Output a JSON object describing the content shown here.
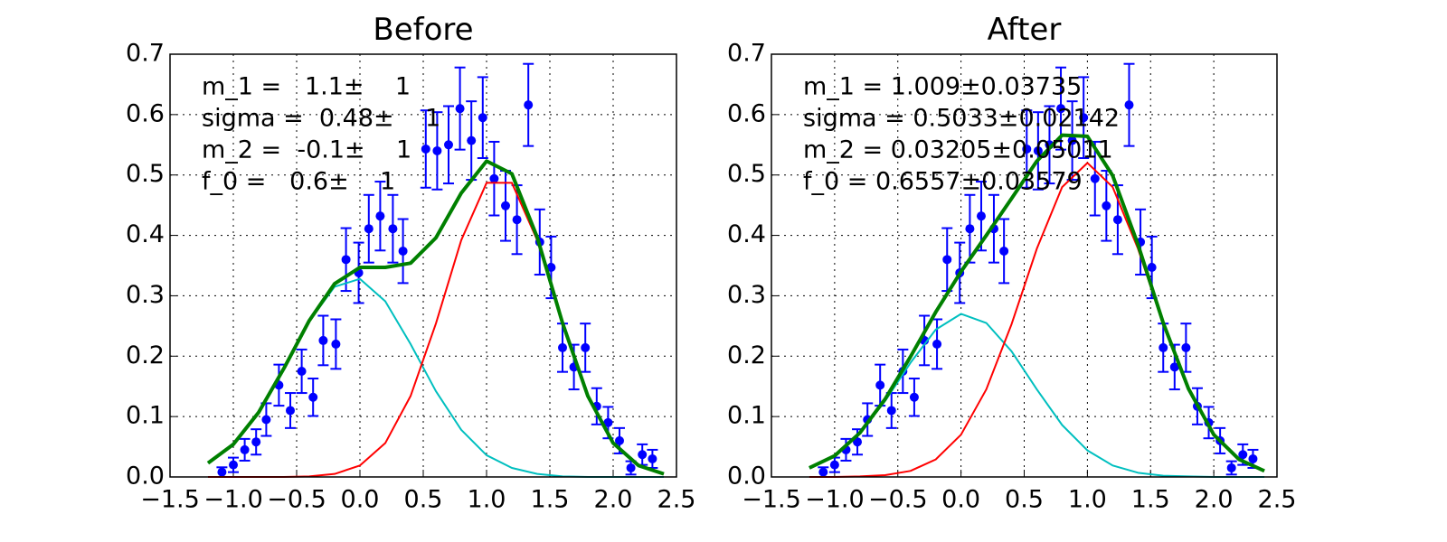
{
  "chart_data": [
    {
      "type": "line",
      "title": "Before",
      "annotations": [
        "m_1 =   1.1±    1",
        "sigma =  0.48±    1",
        "m_2 =  -0.1±    1",
        "f_0 =   0.6±    1"
      ],
      "xlim": [
        -1.5,
        2.5
      ],
      "ylim": [
        0,
        0.7
      ],
      "xticks": [
        {
          "value": -1.5,
          "label": "−1.5"
        },
        {
          "value": -1,
          "label": "−1.0"
        },
        {
          "value": -0.5,
          "label": "−0.5"
        },
        {
          "value": 0,
          "label": "0.0"
        },
        0.5,
        {
          "value": 1,
          "label": "1.0"
        },
        1.5,
        {
          "value": 2,
          "label": "2.0"
        },
        2.5
      ],
      "yticks": [
        {
          "value": 0,
          "label": "0.0"
        },
        0.1,
        0.2,
        0.3,
        0.4,
        0.5,
        0.6,
        0.7
      ],
      "grid": true,
      "points": {
        "color": "#0000ff",
        "x": [
          -1.09,
          -1.0,
          -0.91,
          -0.82,
          -0.74,
          -0.64,
          -0.55,
          -0.46,
          -0.37,
          -0.29,
          -0.19,
          -0.11,
          -0.01,
          0.07,
          0.16,
          0.26,
          0.34,
          0.52,
          0.61,
          0.7,
          0.79,
          0.88,
          0.97,
          1.06,
          1.15,
          1.24,
          1.33,
          1.42,
          1.51,
          1.6,
          1.69,
          1.78,
          1.87,
          1.96,
          2.05,
          2.14,
          2.23,
          2.31
        ],
        "values": [
          0.008,
          0.02,
          0.045,
          0.058,
          0.095,
          0.152,
          0.11,
          0.175,
          0.132,
          0.226,
          0.22,
          0.36,
          0.338,
          0.411,
          0.432,
          0.411,
          0.374,
          0.543,
          0.54,
          0.55,
          0.61,
          0.557,
          0.595,
          0.494,
          0.449,
          0.426,
          0.616,
          0.389,
          0.347,
          0.214,
          0.182,
          0.214,
          0.117,
          0.09,
          0.06,
          0.015,
          0.037,
          0.03
        ],
        "errors": [
          0.008,
          0.012,
          0.018,
          0.021,
          0.027,
          0.034,
          0.029,
          0.036,
          0.031,
          0.041,
          0.041,
          0.052,
          0.05,
          0.056,
          0.057,
          0.056,
          0.053,
          0.064,
          0.064,
          0.064,
          0.068,
          0.065,
          0.067,
          0.061,
          0.058,
          0.057,
          0.068,
          0.054,
          0.051,
          0.04,
          0.037,
          0.04,
          0.03,
          0.026,
          0.021,
          0.011,
          0.017,
          0.015
        ]
      },
      "x": [
        -1.2,
        -1.0,
        -0.8,
        -0.6,
        -0.4,
        -0.2,
        0.0,
        0.2,
        0.4,
        0.6,
        0.8,
        1.0,
        1.2,
        1.4,
        1.6,
        1.8,
        2.0,
        2.2,
        2.4
      ],
      "series": [
        {
          "color": "#00bfbf",
          "width": 2,
          "values": [
            0.023,
            0.054,
            0.107,
            0.18,
            0.258,
            0.315,
            0.328,
            0.291,
            0.22,
            0.142,
            0.078,
            0.036,
            0.015,
            0.005,
            0.001,
            0,
            0,
            0,
            0
          ]
        },
        {
          "color": "#ff0000",
          "width": 2,
          "values": [
            0,
            0,
            0,
            0,
            0.001,
            0.005,
            0.019,
            0.056,
            0.134,
            0.254,
            0.392,
            0.487,
            0.487,
            0.392,
            0.254,
            0.134,
            0.056,
            0.019,
            0.005
          ]
        },
        {
          "color": "#008000",
          "width": 4,
          "values": [
            0.023,
            0.054,
            0.107,
            0.18,
            0.259,
            0.32,
            0.347,
            0.347,
            0.354,
            0.396,
            0.47,
            0.523,
            0.502,
            0.397,
            0.255,
            0.134,
            0.056,
            0.019,
            0.005
          ]
        }
      ]
    },
    {
      "type": "line",
      "title": "After",
      "annotations": [
        "m_1 = 1.009±0.03735",
        "sigma = 0.5033±0.02142",
        "m_2 = 0.03205±0.05011",
        "f_0 = 0.6557±0.03579"
      ],
      "xlim": [
        -1.5,
        2.5
      ],
      "ylim": [
        0,
        0.7
      ],
      "xticks": [
        {
          "value": -1.5,
          "label": "−1.5"
        },
        {
          "value": -1,
          "label": "−1.0"
        },
        {
          "value": -0.5,
          "label": "−0.5"
        },
        {
          "value": 0,
          "label": "0.0"
        },
        0.5,
        {
          "value": 1,
          "label": "1.0"
        },
        1.5,
        {
          "value": 2,
          "label": "2.0"
        },
        2.5
      ],
      "yticks": [
        {
          "value": 0,
          "label": "0.0"
        },
        0.1,
        0.2,
        0.3,
        0.4,
        0.5,
        0.6,
        0.7
      ],
      "grid": true,
      "points": {
        "color": "#0000ff",
        "x": [
          -1.09,
          -1.0,
          -0.91,
          -0.82,
          -0.74,
          -0.64,
          -0.55,
          -0.46,
          -0.37,
          -0.29,
          -0.19,
          -0.11,
          -0.01,
          0.07,
          0.16,
          0.26,
          0.34,
          0.52,
          0.61,
          0.7,
          0.79,
          0.88,
          0.97,
          1.06,
          1.15,
          1.24,
          1.33,
          1.42,
          1.51,
          1.6,
          1.69,
          1.78,
          1.87,
          1.96,
          2.05,
          2.14,
          2.23,
          2.31
        ],
        "values": [
          0.008,
          0.02,
          0.045,
          0.058,
          0.095,
          0.152,
          0.11,
          0.175,
          0.132,
          0.226,
          0.22,
          0.36,
          0.338,
          0.411,
          0.432,
          0.411,
          0.374,
          0.543,
          0.54,
          0.55,
          0.61,
          0.557,
          0.595,
          0.494,
          0.449,
          0.426,
          0.616,
          0.389,
          0.347,
          0.214,
          0.182,
          0.214,
          0.117,
          0.09,
          0.06,
          0.015,
          0.037,
          0.03
        ],
        "errors": [
          0.008,
          0.012,
          0.018,
          0.021,
          0.027,
          0.034,
          0.029,
          0.036,
          0.031,
          0.041,
          0.041,
          0.052,
          0.05,
          0.056,
          0.057,
          0.056,
          0.053,
          0.064,
          0.064,
          0.064,
          0.068,
          0.065,
          0.067,
          0.061,
          0.058,
          0.057,
          0.068,
          0.054,
          0.051,
          0.04,
          0.037,
          0.04,
          0.03,
          0.026,
          0.021,
          0.011,
          0.017,
          0.015
        ]
      },
      "x": [
        -1.2,
        -1.0,
        -0.8,
        -0.6,
        -0.4,
        -0.2,
        0.0,
        0.2,
        0.4,
        0.6,
        0.8,
        1.0,
        1.2,
        1.4,
        1.6,
        1.8,
        2.0,
        2.2,
        2.4
      ],
      "series": [
        {
          "color": "#00bfbf",
          "width": 2,
          "values": [
            0.015,
            0.035,
            0.072,
            0.126,
            0.189,
            0.244,
            0.27,
            0.255,
            0.208,
            0.145,
            0.086,
            0.044,
            0.019,
            0.007,
            0.002,
            0.001,
            0,
            0,
            0
          ]
        },
        {
          "color": "#ff0000",
          "width": 2,
          "values": [
            0,
            0,
            0.001,
            0.003,
            0.01,
            0.029,
            0.07,
            0.145,
            0.253,
            0.378,
            0.48,
            0.52,
            0.48,
            0.378,
            0.253,
            0.145,
            0.07,
            0.029,
            0.01
          ]
        },
        {
          "color": "#008000",
          "width": 4,
          "values": [
            0.015,
            0.035,
            0.073,
            0.129,
            0.199,
            0.273,
            0.34,
            0.4,
            0.461,
            0.523,
            0.566,
            0.564,
            0.499,
            0.385,
            0.255,
            0.146,
            0.07,
            0.029,
            0.01
          ]
        }
      ]
    }
  ]
}
